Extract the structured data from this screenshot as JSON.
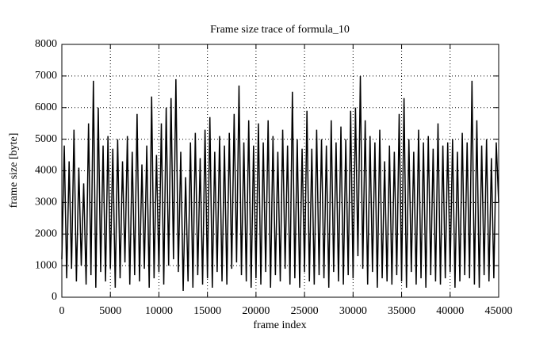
{
  "chart_data": {
    "type": "line",
    "title": "Frame size trace of formula_10",
    "xlabel": "frame index",
    "ylabel": "frame size [byte]",
    "xlim": [
      0,
      45000
    ],
    "ylim": [
      0,
      8000
    ],
    "xticks": [
      0,
      5000,
      10000,
      15000,
      20000,
      25000,
      30000,
      35000,
      40000,
      45000
    ],
    "yticks": [
      0,
      1000,
      2000,
      3000,
      4000,
      5000,
      6000,
      7000,
      8000
    ],
    "grid": true,
    "x": [
      0,
      250,
      500,
      750,
      1000,
      1250,
      1500,
      1750,
      2000,
      2250,
      2500,
      2750,
      3000,
      3250,
      3500,
      3750,
      4000,
      4250,
      4500,
      4750,
      5000,
      5250,
      5500,
      5750,
      6000,
      6250,
      6500,
      6750,
      7000,
      7250,
      7500,
      7750,
      8000,
      8250,
      8500,
      8750,
      9000,
      9250,
      9500,
      9750,
      10000,
      10250,
      10500,
      10750,
      11000,
      11250,
      11500,
      11750,
      12000,
      12250,
      12500,
      12750,
      13000,
      13250,
      13500,
      13750,
      14000,
      14250,
      14500,
      14750,
      15000,
      15250,
      15500,
      15750,
      16000,
      16250,
      16500,
      16750,
      17000,
      17250,
      17500,
      17750,
      18000,
      18250,
      18500,
      18750,
      19000,
      19250,
      19500,
      19750,
      20000,
      20250,
      20500,
      20750,
      21000,
      21250,
      21500,
      21750,
      22000,
      22250,
      22500,
      22750,
      23000,
      23250,
      23500,
      23750,
      24000,
      24250,
      24500,
      24750,
      25000,
      25250,
      25500,
      25750,
      26000,
      26250,
      26500,
      26750,
      27000,
      27250,
      27500,
      27750,
      28000,
      28250,
      28500,
      28750,
      29000,
      29250,
      29500,
      29750,
      30000,
      30250,
      30500,
      30750,
      31000,
      31250,
      31500,
      31750,
      32000,
      32250,
      32500,
      32750,
      33000,
      33250,
      33500,
      33750,
      34000,
      34250,
      34500,
      34750,
      35000,
      35250,
      35500,
      35750,
      36000,
      36250,
      36500,
      36750,
      37000,
      37250,
      37500,
      37750,
      38000,
      38250,
      38500,
      38750,
      39000,
      39250,
      39500,
      39750,
      40000,
      40250,
      40500,
      40750,
      41000,
      41250,
      41500,
      41750,
      42000,
      42250,
      42500,
      42750,
      43000,
      43250,
      43500,
      43750,
      44000,
      44250,
      44500,
      44750,
      45000
    ],
    "series": [
      {
        "color": "#000000",
        "values": [
          1200,
          4800,
          600,
          4300,
          900,
          5300,
          500,
          4100,
          1000,
          3600,
          400,
          5500,
          700,
          6850,
          300,
          6000,
          800,
          4800,
          500,
          5100,
          900,
          4700,
          300,
          5000,
          600,
          4300,
          1100,
          5100,
          400,
          4600,
          700,
          5800,
          500,
          4200,
          900,
          4800,
          300,
          6350,
          600,
          4500,
          800,
          5500,
          400,
          6000,
          1000,
          6300,
          1200,
          6900,
          800,
          4600,
          200,
          3800,
          500,
          4900,
          300,
          5200,
          700,
          4400,
          400,
          5300,
          600,
          5700,
          300,
          4600,
          800,
          5100,
          500,
          4800,
          400,
          5200,
          900,
          5800,
          1100,
          6700,
          700,
          4900,
          500,
          5600,
          300,
          4800,
          600,
          5500,
          400,
          4900,
          800,
          5600,
          300,
          5100,
          700,
          4600,
          500,
          5300,
          900,
          4800,
          400,
          6500,
          600,
          5000,
          300,
          4700,
          800,
          5900,
          500,
          4700,
          400,
          5300,
          700,
          5000,
          600,
          4800,
          300,
          5600,
          800,
          4900,
          500,
          5400,
          400,
          5000,
          700,
          5900,
          600,
          6000,
          1300,
          7000,
          900,
          5600,
          400,
          5100,
          800,
          4900,
          300,
          5300,
          600,
          4300,
          500,
          4800,
          400,
          4600,
          700,
          5800,
          500,
          6300,
          300,
          5000,
          800,
          4600,
          400,
          5300,
          600,
          4900,
          300,
          5100,
          700,
          4700,
          500,
          5500,
          400,
          4800,
          600,
          4900,
          800,
          5000,
          300,
          4600,
          500,
          5200,
          700,
          4900,
          600,
          6850,
          400,
          5600,
          300,
          4800,
          700,
          5000,
          500,
          4400,
          600,
          4900,
          3000
        ]
      }
    ]
  }
}
